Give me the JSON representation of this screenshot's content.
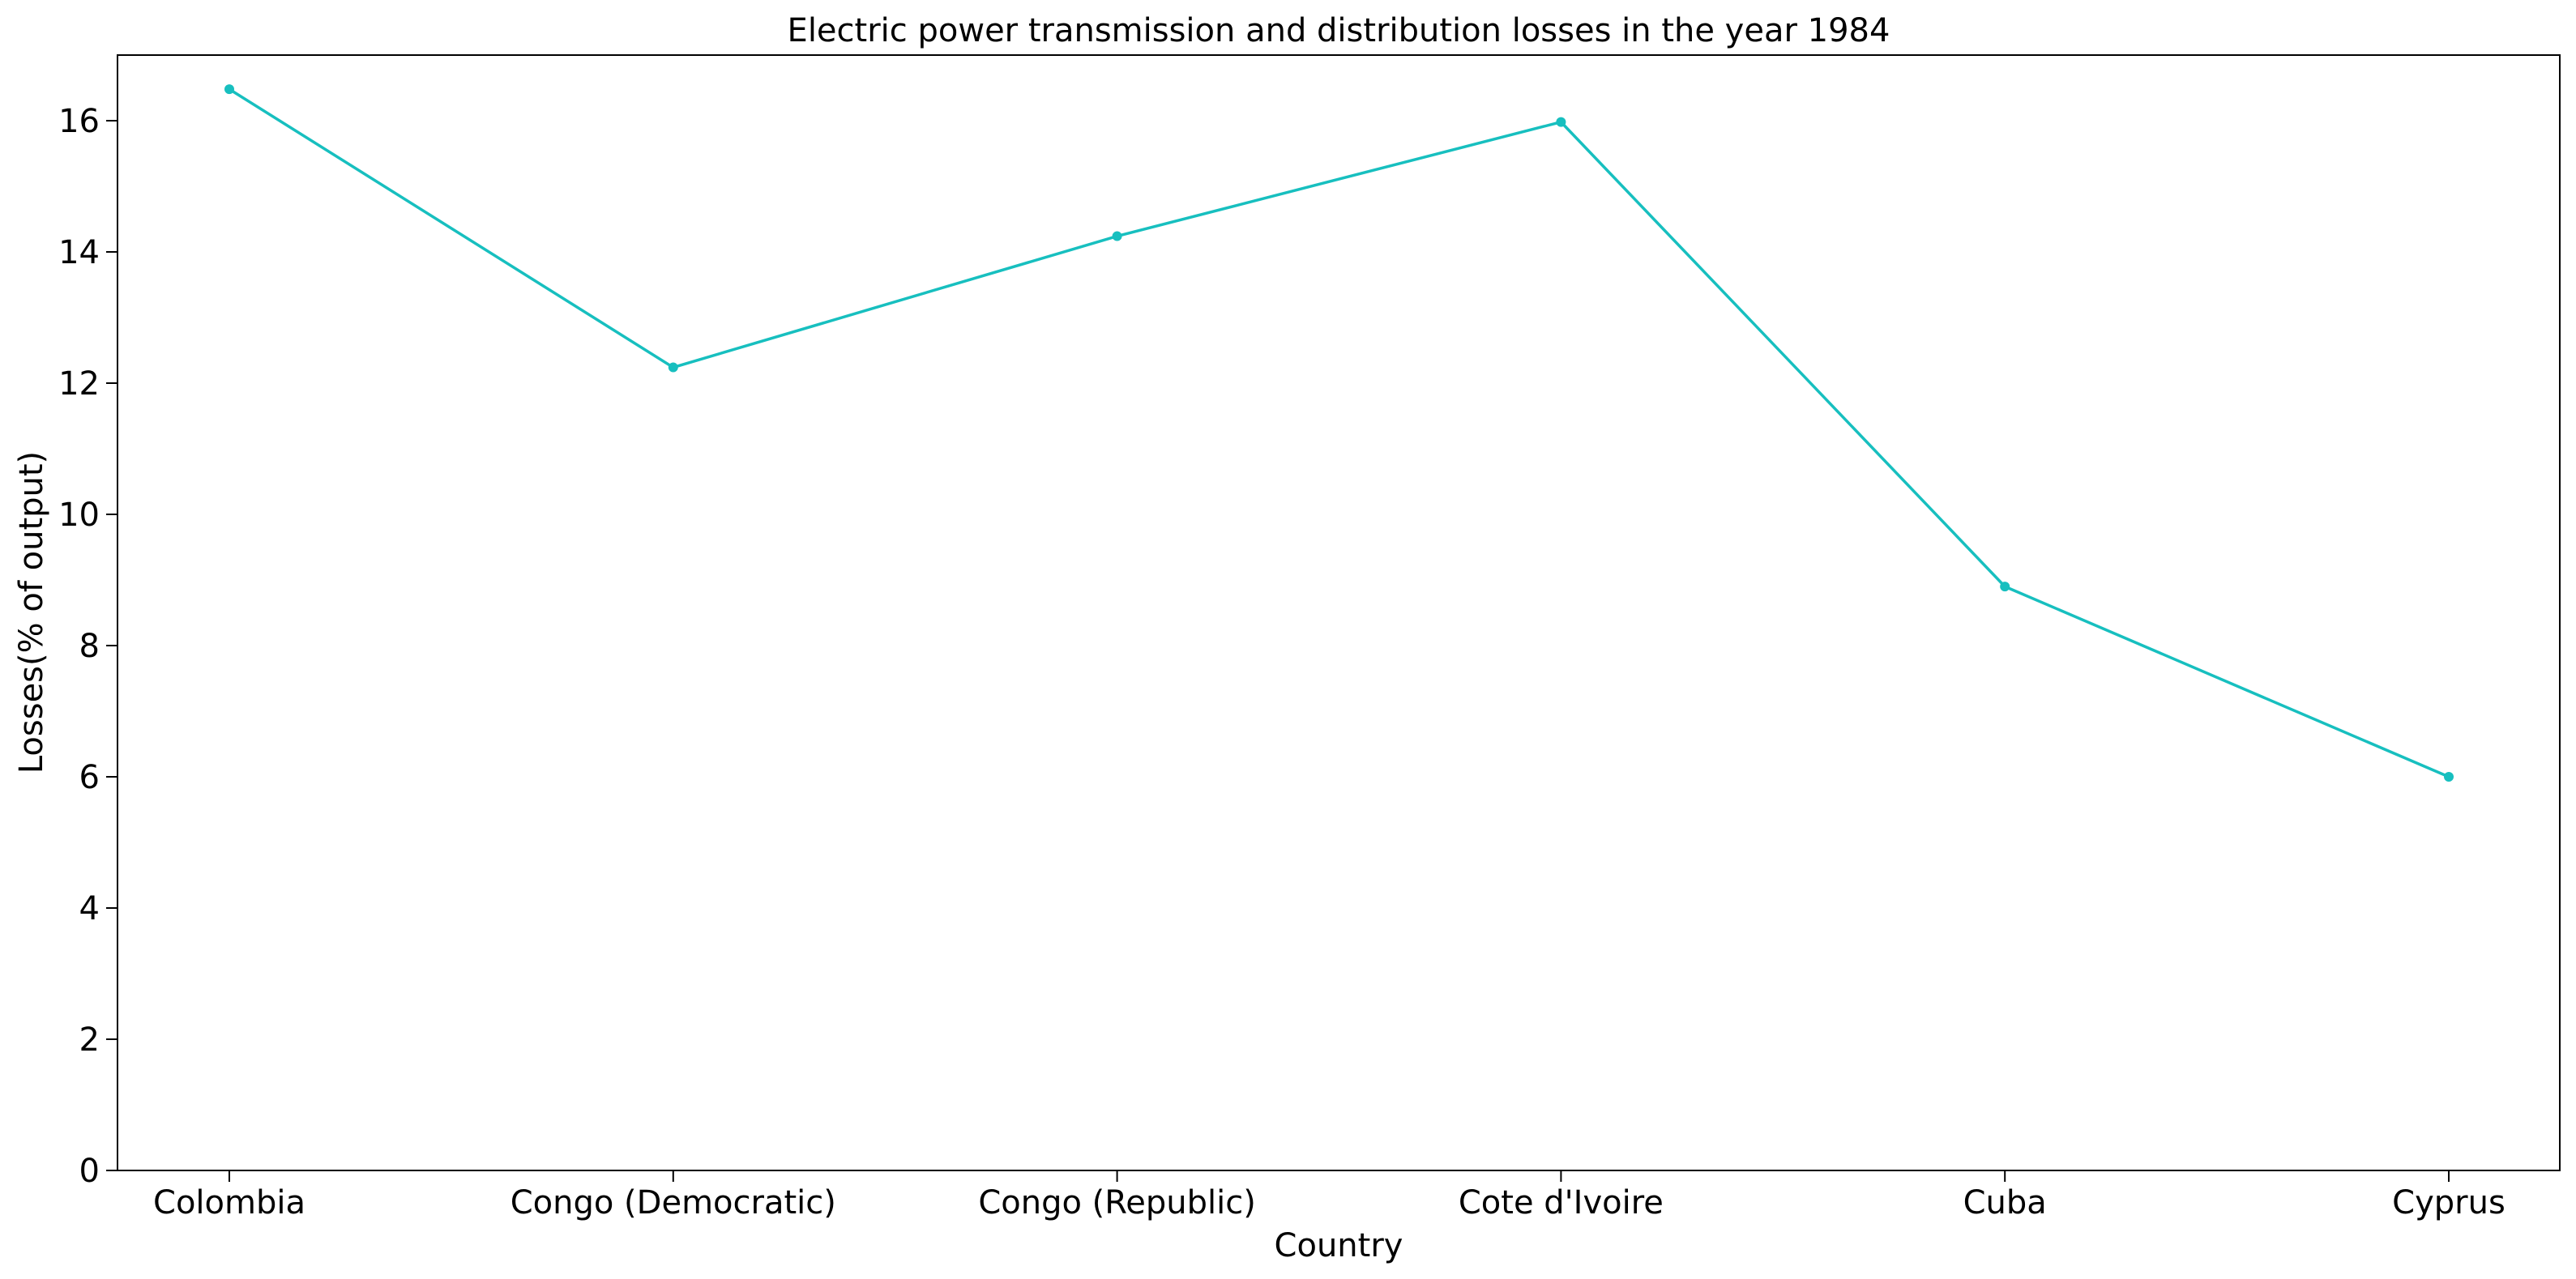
{
  "chart_data": {
    "type": "line",
    "title": "Electric power transmission and distribution losses in the year 1984",
    "xlabel": "Country",
    "ylabel": "Losses(% of output)",
    "categories": [
      "Colombia",
      "Congo (Democratic)",
      "Congo (Republic)",
      "Cote d'Ivoire",
      "Cuba",
      "Cyprus"
    ],
    "series": [
      {
        "values": [
          16.48,
          12.24,
          14.24,
          15.98,
          8.9,
          6.0
        ],
        "color": "#17bfbf",
        "marker": "circle"
      }
    ],
    "ylim": [
      0,
      17
    ],
    "yticks": [
      0,
      2,
      4,
      6,
      8,
      10,
      12,
      14,
      16
    ],
    "grid": false,
    "legend": "none"
  }
}
